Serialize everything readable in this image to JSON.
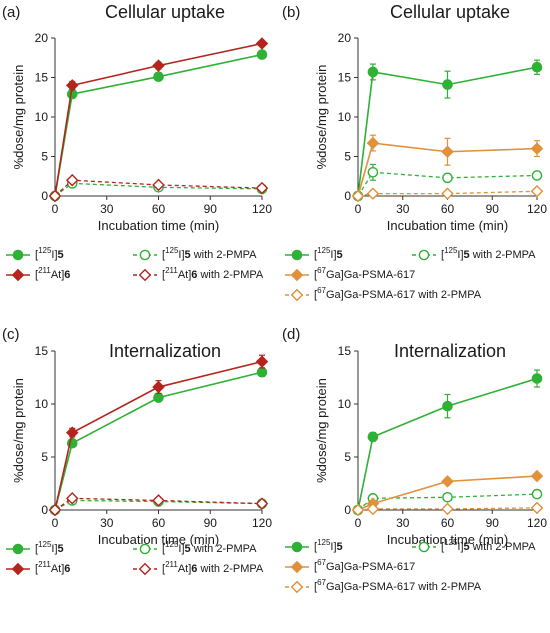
{
  "chart_data": [
    {
      "id": "a",
      "type": "line",
      "panel_label": "(a)",
      "title": "Cellular uptake",
      "xlabel": "Incubation time (min)",
      "ylabel": "%dose/mg protein",
      "x": [
        0,
        10,
        60,
        120
      ],
      "xticks": [
        0,
        30,
        60,
        90,
        120
      ],
      "xlim": [
        0,
        120
      ],
      "ylim": [
        0,
        20
      ],
      "yticks": [
        0,
        5,
        10,
        15,
        20
      ],
      "series": [
        {
          "name": "[125I]5",
          "iso": "125",
          "elem": "I",
          "bold": "5",
          "suffix": "",
          "color": "#2eb135",
          "marker": "circle",
          "filled": true,
          "dashed": false,
          "values": [
            0,
            12.9,
            15.1,
            17.9
          ],
          "errors": [
            0,
            0.4,
            0.3,
            0.4
          ]
        },
        {
          "name": "[125I]5 with 2-PMPA",
          "iso": "125",
          "elem": "I",
          "bold": "5",
          "suffix": " with 2-PMPA",
          "color": "#2eb135",
          "marker": "circle",
          "filled": false,
          "dashed": true,
          "values": [
            0,
            1.6,
            1.1,
            0.9
          ],
          "errors": [
            0,
            0.2,
            0.2,
            0.2
          ]
        },
        {
          "name": "[211At]6",
          "iso": "211",
          "elem": "At",
          "bold": "6",
          "suffix": "",
          "color": "#b3261e",
          "marker": "diamond",
          "filled": true,
          "dashed": false,
          "values": [
            0,
            14.0,
            16.5,
            19.3
          ],
          "errors": [
            0,
            0.5,
            0.4,
            0.3
          ]
        },
        {
          "name": "[211At]6 with 2-PMPA",
          "iso": "211",
          "elem": "At",
          "bold": "6",
          "suffix": " with 2-PMPA",
          "color": "#b3261e",
          "marker": "diamond",
          "filled": false,
          "dashed": true,
          "values": [
            0,
            2.0,
            1.4,
            1.0
          ],
          "errors": [
            0,
            0.2,
            0.2,
            0.2
          ]
        }
      ]
    },
    {
      "id": "b",
      "type": "line",
      "panel_label": "(b)",
      "title": "Cellular uptake",
      "xlabel": "Incubation time (min)",
      "ylabel": "%dose/mg protein",
      "x": [
        0,
        10,
        60,
        120
      ],
      "xticks": [
        0,
        30,
        60,
        90,
        120
      ],
      "xlim": [
        0,
        120
      ],
      "ylim": [
        0,
        20
      ],
      "yticks": [
        0,
        5,
        10,
        15,
        20
      ],
      "series": [
        {
          "name": "[125I]5",
          "iso": "125",
          "elem": "I",
          "bold": "5",
          "suffix": "",
          "color": "#2eb135",
          "marker": "circle",
          "filled": true,
          "dashed": false,
          "values": [
            0,
            15.7,
            14.1,
            16.3
          ],
          "errors": [
            0,
            1.0,
            1.7,
            0.9
          ]
        },
        {
          "name": "[125I]5 with 2-PMPA",
          "iso": "125",
          "elem": "I",
          "bold": "5",
          "suffix": " with 2-PMPA",
          "color": "#2eb135",
          "marker": "circle",
          "filled": false,
          "dashed": true,
          "values": [
            0,
            3.0,
            2.3,
            2.6
          ],
          "errors": [
            0,
            1.0,
            0.3,
            0.3
          ]
        },
        {
          "name": "[67Ga]Ga-PSMA-617",
          "iso": "67",
          "elem": "Ga",
          "bold": "",
          "suffix": "Ga-PSMA-617",
          "color": "#e0913a",
          "marker": "diamond",
          "filled": true,
          "dashed": false,
          "values": [
            0,
            6.7,
            5.6,
            6.0
          ],
          "errors": [
            0,
            1.0,
            1.7,
            1.0
          ]
        },
        {
          "name": "[67Ga]Ga-PSMA-617 with 2-PMPA",
          "iso": "67",
          "elem": "Ga",
          "bold": "",
          "suffix": "Ga-PSMA-617 with 2-PMPA",
          "color": "#e0913a",
          "marker": "diamond",
          "filled": false,
          "dashed": true,
          "values": [
            0,
            0.3,
            0.3,
            0.6
          ],
          "errors": [
            0,
            0.1,
            0.1,
            0.1
          ]
        }
      ]
    },
    {
      "id": "c",
      "type": "line",
      "panel_label": "(c)",
      "title": "Internalization",
      "xlabel": "Incubation time (min)",
      "ylabel": "%dose/mg protein",
      "x": [
        0,
        10,
        60,
        120
      ],
      "xticks": [
        0,
        30,
        60,
        90,
        120
      ],
      "xlim": [
        0,
        120
      ],
      "ylim": [
        0,
        15
      ],
      "yticks": [
        0,
        5,
        10,
        15
      ],
      "series": [
        {
          "name": "[125I]5",
          "iso": "125",
          "elem": "I",
          "bold": "5",
          "suffix": "",
          "color": "#2eb135",
          "marker": "circle",
          "filled": true,
          "dashed": false,
          "values": [
            0,
            6.3,
            10.6,
            13.0
          ],
          "errors": [
            0,
            0.3,
            0.3,
            0.4
          ]
        },
        {
          "name": "[125I]5 with 2-PMPA",
          "iso": "125",
          "elem": "I",
          "bold": "5",
          "suffix": " with 2-PMPA",
          "color": "#2eb135",
          "marker": "circle",
          "filled": false,
          "dashed": true,
          "values": [
            0,
            0.9,
            0.8,
            0.6
          ],
          "errors": [
            0,
            0.1,
            0.1,
            0.1
          ]
        },
        {
          "name": "[211At]6",
          "iso": "211",
          "elem": "At",
          "bold": "6",
          "suffix": "",
          "color": "#b3261e",
          "marker": "diamond",
          "filled": true,
          "dashed": false,
          "values": [
            0,
            7.3,
            11.6,
            14.0
          ],
          "errors": [
            0,
            0.4,
            0.6,
            0.6
          ]
        },
        {
          "name": "[211At]6 with 2-PMPA",
          "iso": "211",
          "elem": "At",
          "bold": "6",
          "suffix": " with 2-PMPA",
          "color": "#b3261e",
          "marker": "diamond",
          "filled": false,
          "dashed": true,
          "values": [
            0,
            1.1,
            0.9,
            0.6
          ],
          "errors": [
            0,
            0.1,
            0.1,
            0.1
          ]
        }
      ]
    },
    {
      "id": "d",
      "type": "line",
      "panel_label": "(d)",
      "title": "Internalization",
      "xlabel": "Incubation time (min)",
      "ylabel": "%dose/mg protein",
      "x": [
        0,
        10,
        60,
        120
      ],
      "xticks": [
        0,
        30,
        60,
        90,
        120
      ],
      "xlim": [
        0,
        120
      ],
      "ylim": [
        0,
        15
      ],
      "yticks": [
        0,
        5,
        10,
        15
      ],
      "series": [
        {
          "name": "[125I]5",
          "iso": "125",
          "elem": "I",
          "bold": "5",
          "suffix": "",
          "color": "#2eb135",
          "marker": "circle",
          "filled": true,
          "dashed": false,
          "values": [
            0,
            6.9,
            9.8,
            12.4
          ],
          "errors": [
            0,
            0.4,
            1.1,
            0.8
          ]
        },
        {
          "name": "[125I]5 with 2-PMPA",
          "iso": "125",
          "elem": "I",
          "bold": "5",
          "suffix": " with 2-PMPA",
          "color": "#2eb135",
          "marker": "circle",
          "filled": false,
          "dashed": true,
          "values": [
            0,
            1.1,
            1.2,
            1.5
          ],
          "errors": [
            0,
            0.2,
            0.2,
            0.2
          ]
        },
        {
          "name": "[67Ga]Ga-PSMA-617",
          "iso": "67",
          "elem": "Ga",
          "bold": "",
          "suffix": "Ga-PSMA-617",
          "color": "#e0913a",
          "marker": "diamond",
          "filled": true,
          "dashed": false,
          "values": [
            0,
            0.6,
            2.7,
            3.2
          ],
          "errors": [
            0,
            0.1,
            0.3,
            0.2
          ]
        },
        {
          "name": "[67Ga]Ga-PSMA-617 with 2-PMPA",
          "iso": "67",
          "elem": "Ga",
          "bold": "",
          "suffix": "Ga-PSMA-617 with 2-PMPA",
          "color": "#e0913a",
          "marker": "diamond",
          "filled": false,
          "dashed": true,
          "values": [
            0,
            0.1,
            0.1,
            0.2
          ],
          "errors": [
            0,
            0.05,
            0.05,
            0.05
          ]
        }
      ]
    }
  ]
}
